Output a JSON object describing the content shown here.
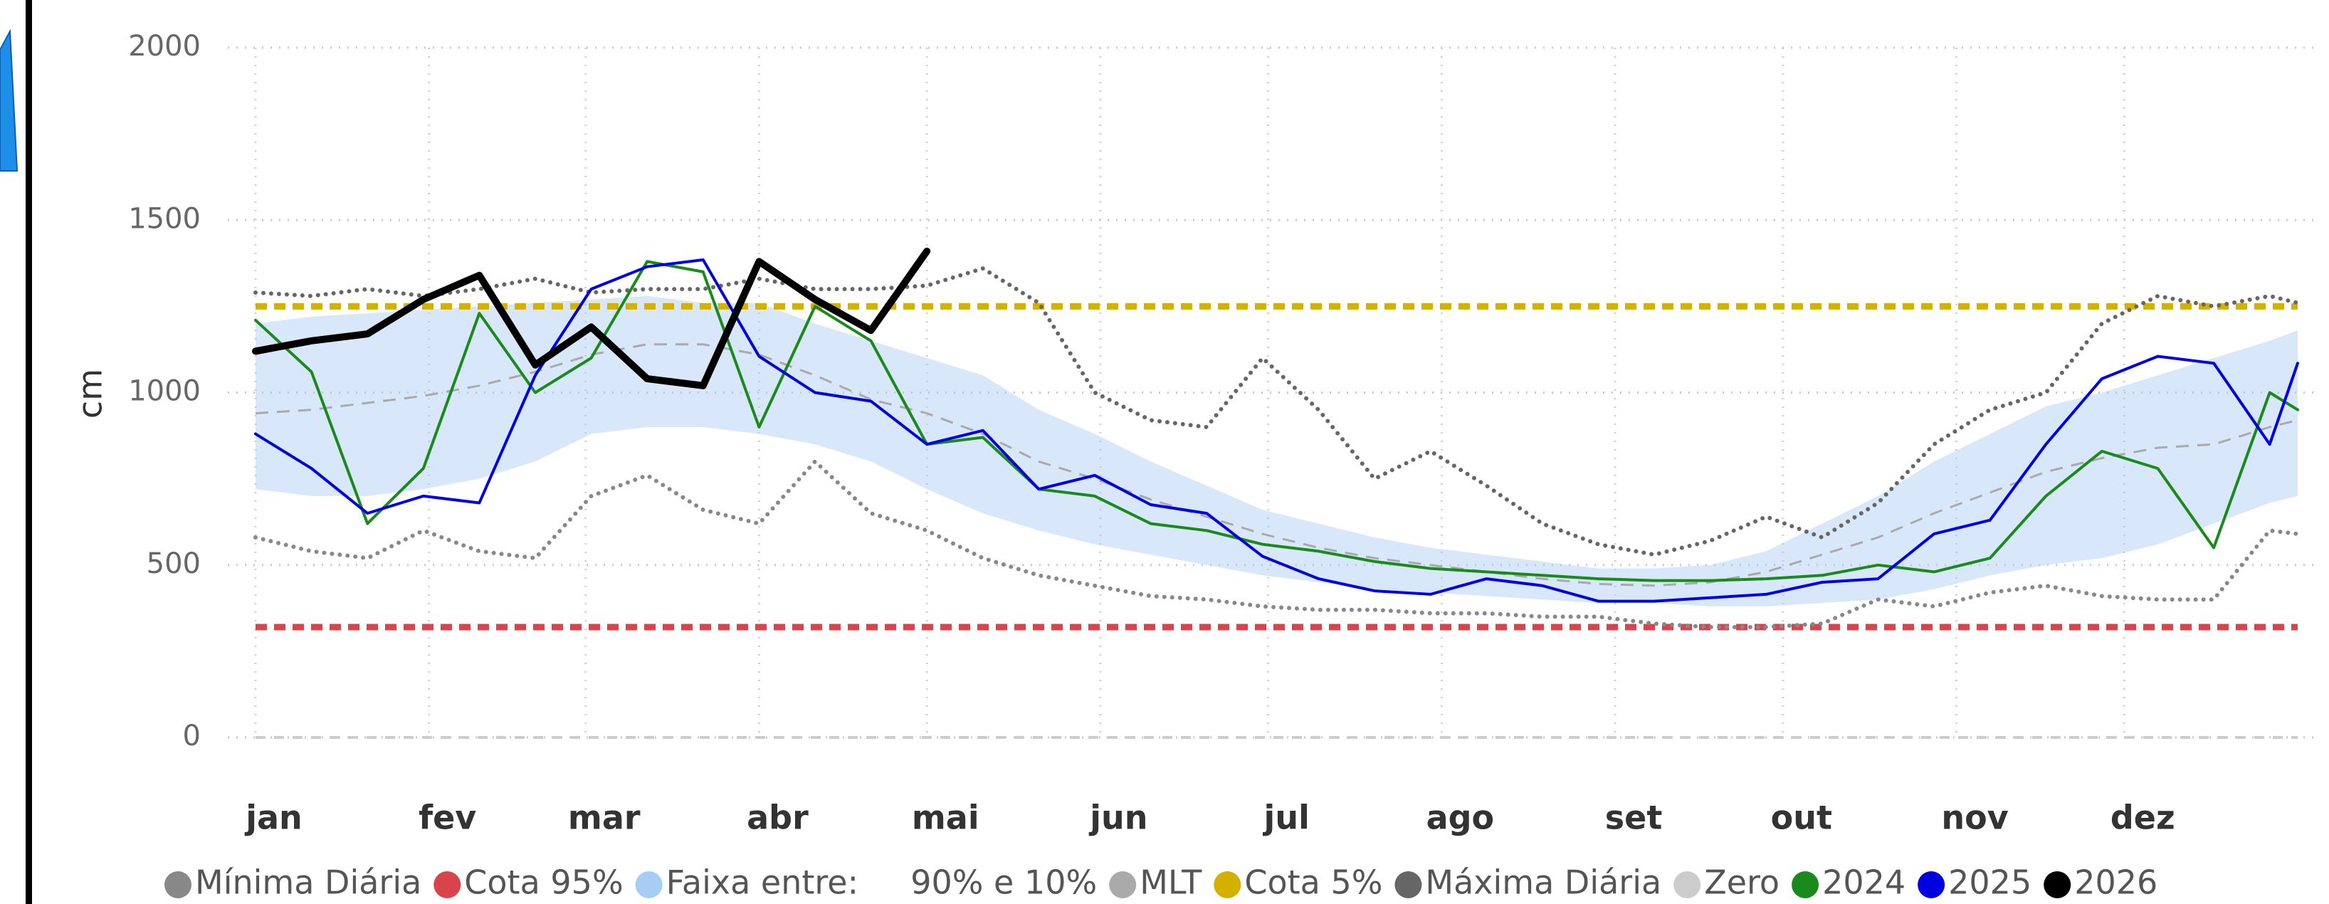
{
  "chart_data": {
    "type": "line",
    "y_label": "cm",
    "x": [
      0,
      10,
      20,
      30,
      40,
      50,
      60,
      70,
      80,
      90,
      100,
      110,
      120,
      130,
      140,
      150,
      160,
      170,
      180,
      190,
      200,
      210,
      220,
      230,
      240,
      250,
      260,
      270,
      280,
      290,
      300,
      310,
      320,
      330,
      340,
      350,
      360,
      365
    ],
    "xlim": [
      0,
      365
    ],
    "xticks": [
      {
        "value": 0,
        "label": "jan"
      },
      {
        "value": 31,
        "label": "fev"
      },
      {
        "value": 59,
        "label": "mar"
      },
      {
        "value": 90,
        "label": "abr"
      },
      {
        "value": 120,
        "label": "mai"
      },
      {
        "value": 151,
        "label": "jun"
      },
      {
        "value": 181,
        "label": "jul"
      },
      {
        "value": 212,
        "label": "ago"
      },
      {
        "value": 243,
        "label": "set"
      },
      {
        "value": 273,
        "label": "out"
      },
      {
        "value": 304,
        "label": "nov"
      },
      {
        "value": 334,
        "label": "dez"
      }
    ],
    "ylim": [
      0,
      2000
    ],
    "yticks": [
      0,
      500,
      1000,
      1500,
      2000
    ],
    "grid": true,
    "legend": "bottom",
    "series": [
      {
        "name": "Mínima Diária",
        "color": "#888888",
        "style": "dotted",
        "values": [
          580,
          540,
          520,
          600,
          540,
          520,
          700,
          760,
          660,
          620,
          800,
          650,
          600,
          520,
          470,
          440,
          410,
          400,
          380,
          370,
          370,
          360,
          360,
          350,
          350,
          330,
          320,
          320,
          330,
          400,
          380,
          420,
          440,
          410,
          400,
          400,
          600,
          590
        ]
      },
      {
        "name": "Cota 95%",
        "color": "#d9434b",
        "style": "hline",
        "value": 320
      },
      {
        "name": "Faixa entre:     90% e 10%",
        "color": "#a8cdf5",
        "style": "band",
        "values": [
          1200,
          1220,
          1230,
          1240,
          1250,
          1260,
          1270,
          1280,
          1260,
          1260,
          1200,
          1150,
          1100,
          1050,
          950,
          880,
          800,
          730,
          660,
          620,
          580,
          550,
          530,
          510,
          490,
          490,
          500,
          540,
          620,
          700,
          800,
          880,
          960,
          1000,
          1050,
          1100,
          1150,
          1180
        ],
        "lower": [
          720,
          700,
          700,
          720,
          750,
          800,
          880,
          900,
          900,
          880,
          850,
          800,
          720,
          650,
          600,
          560,
          530,
          500,
          470,
          450,
          430,
          420,
          410,
          400,
          390,
          390,
          380,
          380,
          390,
          400,
          430,
          470,
          500,
          520,
          560,
          620,
          680,
          700
        ]
      },
      {
        "name": "MLT",
        "color": "#aaaaaa",
        "style": "dashed",
        "values": [
          940,
          950,
          970,
          990,
          1020,
          1060,
          1110,
          1140,
          1140,
          1110,
          1050,
          980,
          940,
          880,
          800,
          750,
          690,
          640,
          590,
          550,
          520,
          500,
          480,
          460,
          445,
          440,
          450,
          480,
          530,
          580,
          650,
          710,
          770,
          810,
          840,
          850,
          900,
          920
        ]
      },
      {
        "name": "Cota 5%",
        "color": "#d4b000",
        "style": "hline",
        "value": 1250
      },
      {
        "name": "Máxima Diária",
        "color": "#666666",
        "style": "dotted",
        "values": [
          1290,
          1280,
          1300,
          1280,
          1300,
          1330,
          1290,
          1300,
          1300,
          1330,
          1300,
          1300,
          1310,
          1360,
          1260,
          1000,
          920,
          900,
          1100,
          950,
          750,
          830,
          730,
          620,
          560,
          530,
          570,
          640,
          580,
          680,
          850,
          950,
          1000,
          1200,
          1280,
          1250,
          1280,
          1260
        ]
      },
      {
        "name": "Zero",
        "color": "#cccccc",
        "style": "hline",
        "value": 0
      },
      {
        "name": "2024",
        "color": "#1a8a1a",
        "style": "solid",
        "values": [
          1210,
          1060,
          620,
          780,
          1230,
          1000,
          1100,
          1380,
          1350,
          900,
          1250,
          1150,
          850,
          870,
          720,
          700,
          620,
          600,
          560,
          540,
          510,
          490,
          480,
          470,
          460,
          455,
          455,
          460,
          470,
          500,
          480,
          520,
          700,
          830,
          780,
          550,
          1000,
          950
        ]
      },
      {
        "name": "2025",
        "color": "#0000e0",
        "style": "solid",
        "values": [
          880,
          780,
          650,
          700,
          680,
          1050,
          1300,
          1365,
          1385,
          1105,
          1000,
          975,
          850,
          890,
          720,
          760,
          675,
          650,
          525,
          460,
          425,
          415,
          460,
          440,
          395,
          395,
          405,
          415,
          450,
          460,
          590,
          630,
          850,
          1040,
          1105,
          1085,
          850,
          1085
        ]
      },
      {
        "name": "2026",
        "color": "#000000",
        "style": "bold",
        "values": [
          1120,
          1150,
          1170,
          1270,
          1340,
          1080,
          1190,
          1040,
          1020,
          1380,
          1270,
          1180,
          1410,
          null,
          null,
          null,
          null,
          null,
          null,
          null,
          null,
          null,
          null,
          null,
          null,
          null,
          null,
          null,
          null,
          null,
          null,
          null,
          null,
          null,
          null,
          null,
          null,
          null
        ]
      }
    ]
  }
}
